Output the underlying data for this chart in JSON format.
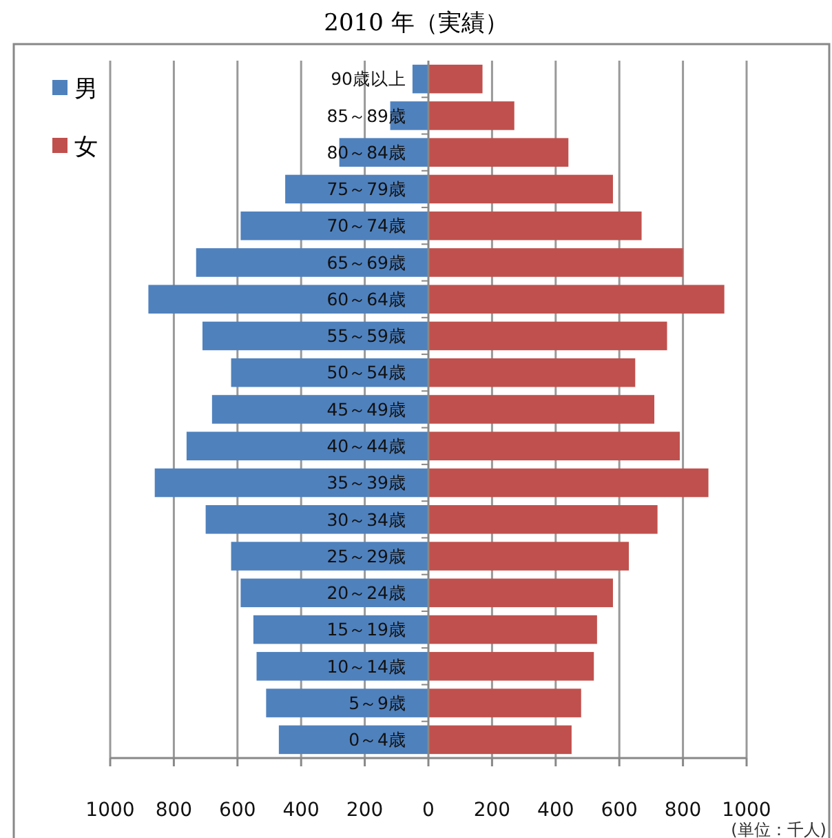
{
  "chart_data": {
    "type": "bar",
    "title": "2010 年（実績）",
    "orientation": "horizontal",
    "stacked": true,
    "categories": [
      "90歳以上",
      "85～89歳",
      "80～84歳",
      "75～79歳",
      "70～74歳",
      "65～69歳",
      "60～64歳",
      "55～59歳",
      "50～54歳",
      "45～49歳",
      "40～44歳",
      "35～39歳",
      "30～34歳",
      "25～29歳",
      "20～24歳",
      "15～19歳",
      "10～14歳",
      "5～9歳",
      "0～4歳"
    ],
    "series": [
      {
        "name": "男",
        "color": "#4f81bd",
        "values": [
          -50,
          -120,
          -280,
          -450,
          -590,
          -730,
          -880,
          -710,
          -620,
          -680,
          -760,
          -860,
          -700,
          -620,
          -590,
          -550,
          -540,
          -510,
          -470
        ]
      },
      {
        "name": "女",
        "color": "#c0504d",
        "values": [
          170,
          270,
          440,
          580,
          670,
          800,
          930,
          750,
          650,
          710,
          790,
          880,
          720,
          630,
          580,
          530,
          520,
          480,
          450
        ]
      }
    ],
    "xlim": [
      -1000,
      1000
    ],
    "xticks": [
      {
        "value": -1000,
        "label": "1000"
      },
      {
        "value": -800,
        "label": "800"
      },
      {
        "value": -600,
        "label": "600"
      },
      {
        "value": -400,
        "label": "400"
      },
      {
        "value": -200,
        "label": "200"
      },
      0,
      200,
      400,
      600,
      800,
      1000
    ],
    "grid": "x",
    "legend": "top left",
    "annotations": [
      "(単位：千人)"
    ]
  }
}
